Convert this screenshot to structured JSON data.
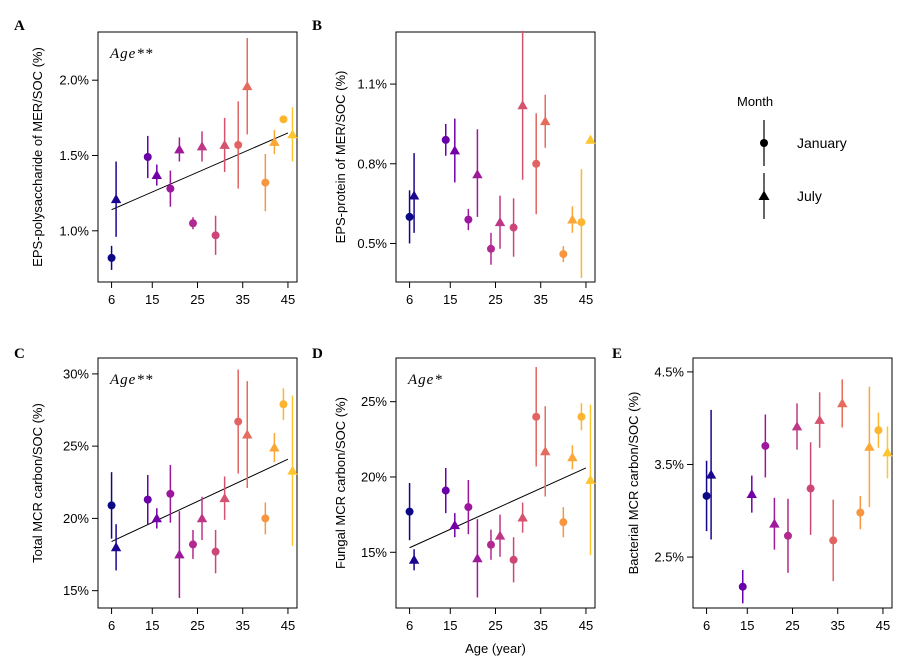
{
  "chart_data": [
    {
      "panel": "A",
      "type": "scatter",
      "ylabel": "EPS-polysaccharide of MER/SOC (%)",
      "xlabel": "",
      "annotation": "Age**",
      "xticks": [
        6,
        15,
        25,
        35,
        45
      ],
      "xtick_labels": [
        "6",
        "15",
        "25",
        "35",
        "45"
      ],
      "xlim": [
        3,
        47
      ],
      "yticks": [
        1.0,
        1.5,
        2.0
      ],
      "ytick_labels": [
        "1.0%",
        "1.5%",
        "2.0%"
      ],
      "ylim": [
        0.66,
        2.32
      ],
      "trend": [
        [
          6,
          1.14
        ],
        [
          45,
          1.65
        ]
      ],
      "points": [
        {
          "x": 6,
          "y": 0.82,
          "lo": 0.74,
          "hi": 0.9,
          "month": "January",
          "color": "#0d0887"
        },
        {
          "x": 7,
          "y": 1.21,
          "lo": 0.96,
          "hi": 1.46,
          "month": "July",
          "color": "#1c068f"
        },
        {
          "x": 14,
          "y": 1.49,
          "lo": 1.35,
          "hi": 1.63,
          "month": "January",
          "color": "#6a00a8"
        },
        {
          "x": 16,
          "y": 1.37,
          "lo": 1.3,
          "hi": 1.44,
          "month": "July",
          "color": "#7401a8"
        },
        {
          "x": 19,
          "y": 1.28,
          "lo": 1.16,
          "hi": 1.4,
          "month": "January",
          "color": "#9c179e"
        },
        {
          "x": 21,
          "y": 1.54,
          "lo": 1.46,
          "hi": 1.62,
          "month": "July",
          "color": "#9e1a9b"
        },
        {
          "x": 24,
          "y": 1.05,
          "lo": 1.01,
          "hi": 1.09,
          "month": "January",
          "color": "#b12a90"
        },
        {
          "x": 26,
          "y": 1.56,
          "lo": 1.46,
          "hi": 1.66,
          "month": "July",
          "color": "#bd3786"
        },
        {
          "x": 29,
          "y": 0.97,
          "lo": 0.84,
          "hi": 1.1,
          "month": "January",
          "color": "#cc4778"
        },
        {
          "x": 31,
          "y": 1.57,
          "lo": 1.39,
          "hi": 1.75,
          "month": "July",
          "color": "#d5536f"
        },
        {
          "x": 34,
          "y": 1.57,
          "lo": 1.28,
          "hi": 1.86,
          "month": "January",
          "color": "#e16462"
        },
        {
          "x": 36,
          "y": 1.96,
          "lo": 1.64,
          "hi": 2.28,
          "month": "July",
          "color": "#e56b5d"
        },
        {
          "x": 40,
          "y": 1.32,
          "lo": 1.13,
          "hi": 1.51,
          "month": "January",
          "color": "#f89540"
        },
        {
          "x": 42,
          "y": 1.59,
          "lo": 1.51,
          "hi": 1.67,
          "month": "July",
          "color": "#fca636"
        },
        {
          "x": 44,
          "y": 1.74,
          "lo": 1.72,
          "hi": 1.76,
          "month": "January",
          "color": "#fdb42f"
        },
        {
          "x": 46,
          "y": 1.64,
          "lo": 1.46,
          "hi": 1.82,
          "month": "July",
          "color": "#fcc62f"
        }
      ]
    },
    {
      "panel": "B",
      "type": "scatter",
      "ylabel": "EPS-protein of MER/SOC (%)",
      "xlabel": "",
      "annotation": "",
      "xticks": [
        6,
        15,
        25,
        35,
        45
      ],
      "xtick_labels": [
        "6",
        "15",
        "25",
        "35",
        "45"
      ],
      "xlim": [
        3,
        47
      ],
      "yticks": [
        0.5,
        0.8,
        1.1
      ],
      "ytick_labels": [
        "0.5%",
        "0.8%",
        "1.1%"
      ],
      "ylim": [
        0.355,
        1.296
      ],
      "trend": null,
      "points": [
        {
          "x": 6,
          "y": 0.6,
          "lo": 0.5,
          "hi": 0.7,
          "month": "January",
          "color": "#0d0887"
        },
        {
          "x": 7,
          "y": 0.68,
          "lo": 0.54,
          "hi": 0.84,
          "month": "July",
          "color": "#1c068f"
        },
        {
          "x": 14,
          "y": 0.89,
          "lo": 0.83,
          "hi": 0.95,
          "month": "January",
          "color": "#6a00a8"
        },
        {
          "x": 16,
          "y": 0.85,
          "lo": 0.73,
          "hi": 0.97,
          "month": "July",
          "color": "#7401a8"
        },
        {
          "x": 19,
          "y": 0.59,
          "lo": 0.55,
          "hi": 0.63,
          "month": "January",
          "color": "#9c179e"
        },
        {
          "x": 21,
          "y": 0.76,
          "lo": 0.6,
          "hi": 0.93,
          "month": "July",
          "color": "#9e1a9b"
        },
        {
          "x": 24,
          "y": 0.48,
          "lo": 0.42,
          "hi": 0.54,
          "month": "January",
          "color": "#b12a90"
        },
        {
          "x": 26,
          "y": 0.58,
          "lo": 0.48,
          "hi": 0.68,
          "month": "July",
          "color": "#bd3786"
        },
        {
          "x": 29,
          "y": 0.56,
          "lo": 0.45,
          "hi": 0.67,
          "month": "January",
          "color": "#cc4778"
        },
        {
          "x": 31,
          "y": 1.02,
          "lo": 0.74,
          "hi": 1.3,
          "month": "July",
          "color": "#d5536f"
        },
        {
          "x": 34,
          "y": 0.8,
          "lo": 0.61,
          "hi": 0.99,
          "month": "January",
          "color": "#e16462"
        },
        {
          "x": 36,
          "y": 0.96,
          "lo": 0.86,
          "hi": 1.06,
          "month": "July",
          "color": "#e56b5d"
        },
        {
          "x": 40,
          "y": 0.46,
          "lo": 0.43,
          "hi": 0.49,
          "month": "January",
          "color": "#f89540"
        },
        {
          "x": 42,
          "y": 0.59,
          "lo": 0.54,
          "hi": 0.64,
          "month": "July",
          "color": "#fca636"
        },
        {
          "x": 44,
          "y": 0.58,
          "lo": 0.37,
          "hi": 0.78,
          "month": "January",
          "color": "#fdb42f"
        },
        {
          "x": 46,
          "y": 0.89,
          "lo": 0.89,
          "hi": 0.89,
          "month": "July",
          "color": "#fcc62f"
        }
      ]
    },
    {
      "panel": "C",
      "type": "scatter",
      "ylabel": "Total MCR carbon/SOC (%)",
      "xlabel": "",
      "annotation": "Age**",
      "xticks": [
        6,
        15,
        25,
        35,
        45
      ],
      "xtick_labels": [
        "6",
        "15",
        "25",
        "35",
        "45"
      ],
      "xlim": [
        3,
        47
      ],
      "yticks": [
        15,
        20,
        25,
        30
      ],
      "ytick_labels": [
        "15%",
        "20%",
        "25%",
        "30%"
      ],
      "ylim": [
        13.8,
        31.1
      ],
      "trend": [
        [
          6,
          18.4
        ],
        [
          45,
          24.1
        ]
      ],
      "points": [
        {
          "x": 6,
          "y": 20.9,
          "lo": 18.6,
          "hi": 23.2,
          "month": "January",
          "color": "#0d0887"
        },
        {
          "x": 7,
          "y": 18.0,
          "lo": 16.4,
          "hi": 19.6,
          "month": "July",
          "color": "#1c068f"
        },
        {
          "x": 14,
          "y": 21.3,
          "lo": 19.6,
          "hi": 23.0,
          "month": "January",
          "color": "#6a00a8"
        },
        {
          "x": 16,
          "y": 20.0,
          "lo": 19.3,
          "hi": 20.7,
          "month": "July",
          "color": "#7401a8"
        },
        {
          "x": 19,
          "y": 21.7,
          "lo": 19.7,
          "hi": 23.7,
          "month": "January",
          "color": "#9c179e"
        },
        {
          "x": 21,
          "y": 17.5,
          "lo": 14.5,
          "hi": 20.5,
          "month": "July",
          "color": "#9e1a9b"
        },
        {
          "x": 24,
          "y": 18.2,
          "lo": 17.2,
          "hi": 19.2,
          "month": "January",
          "color": "#b12a90"
        },
        {
          "x": 26,
          "y": 20.0,
          "lo": 18.5,
          "hi": 21.5,
          "month": "July",
          "color": "#bd3786"
        },
        {
          "x": 29,
          "y": 17.7,
          "lo": 16.2,
          "hi": 19.2,
          "month": "January",
          "color": "#cc4778"
        },
        {
          "x": 31,
          "y": 21.4,
          "lo": 19.9,
          "hi": 22.9,
          "month": "July",
          "color": "#d5536f"
        },
        {
          "x": 34,
          "y": 26.7,
          "lo": 23.1,
          "hi": 30.3,
          "month": "January",
          "color": "#e16462"
        },
        {
          "x": 36,
          "y": 25.8,
          "lo": 22.1,
          "hi": 29.5,
          "month": "July",
          "color": "#e56b5d"
        },
        {
          "x": 40,
          "y": 20.0,
          "lo": 18.9,
          "hi": 21.1,
          "month": "January",
          "color": "#f89540"
        },
        {
          "x": 42,
          "y": 24.9,
          "lo": 23.9,
          "hi": 25.9,
          "month": "July",
          "color": "#fca636"
        },
        {
          "x": 44,
          "y": 27.9,
          "lo": 26.8,
          "hi": 29.0,
          "month": "January",
          "color": "#fdb42f"
        },
        {
          "x": 46,
          "y": 23.3,
          "lo": 18.1,
          "hi": 28.5,
          "month": "July",
          "color": "#fcc62f"
        }
      ]
    },
    {
      "panel": "D",
      "type": "scatter",
      "ylabel": "Fungal MCR carbon/SOC (%)",
      "xlabel": "Age (year)",
      "annotation": "Age*",
      "xticks": [
        6,
        15,
        25,
        35,
        45
      ],
      "xtick_labels": [
        "6",
        "15",
        "25",
        "35",
        "45"
      ],
      "xlim": [
        3,
        47
      ],
      "yticks": [
        15,
        20,
        25
      ],
      "ytick_labels": [
        "15%",
        "20%",
        "25%"
      ],
      "ylim": [
        11.3,
        27.9
      ],
      "trend": [
        [
          6,
          15.3
        ],
        [
          45,
          20.6
        ]
      ],
      "points": [
        {
          "x": 6,
          "y": 17.7,
          "lo": 15.8,
          "hi": 19.6,
          "month": "January",
          "color": "#0d0887"
        },
        {
          "x": 7,
          "y": 14.5,
          "lo": 13.8,
          "hi": 15.2,
          "month": "July",
          "color": "#1c068f"
        },
        {
          "x": 14,
          "y": 19.1,
          "lo": 17.6,
          "hi": 20.6,
          "month": "January",
          "color": "#6a00a8"
        },
        {
          "x": 16,
          "y": 16.8,
          "lo": 16.0,
          "hi": 17.6,
          "month": "July",
          "color": "#7401a8"
        },
        {
          "x": 19,
          "y": 18.0,
          "lo": 16.2,
          "hi": 19.8,
          "month": "January",
          "color": "#9c179e"
        },
        {
          "x": 21,
          "y": 14.6,
          "lo": 12.0,
          "hi": 17.2,
          "month": "July",
          "color": "#9e1a9b"
        },
        {
          "x": 24,
          "y": 15.5,
          "lo": 14.5,
          "hi": 16.5,
          "month": "January",
          "color": "#b12a90"
        },
        {
          "x": 26,
          "y": 16.1,
          "lo": 14.7,
          "hi": 17.5,
          "month": "July",
          "color": "#bd3786"
        },
        {
          "x": 29,
          "y": 14.5,
          "lo": 13.0,
          "hi": 16.0,
          "month": "January",
          "color": "#cc4778"
        },
        {
          "x": 31,
          "y": 17.3,
          "lo": 16.3,
          "hi": 18.3,
          "month": "July",
          "color": "#d5536f"
        },
        {
          "x": 34,
          "y": 24.0,
          "lo": 20.7,
          "hi": 27.3,
          "month": "January",
          "color": "#e16462"
        },
        {
          "x": 36,
          "y": 21.7,
          "lo": 18.7,
          "hi": 24.7,
          "month": "July",
          "color": "#e56b5d"
        },
        {
          "x": 40,
          "y": 17.0,
          "lo": 16.0,
          "hi": 18.0,
          "month": "January",
          "color": "#f89540"
        },
        {
          "x": 42,
          "y": 21.3,
          "lo": 20.5,
          "hi": 22.1,
          "month": "July",
          "color": "#fca636"
        },
        {
          "x": 44,
          "y": 24.0,
          "lo": 23.1,
          "hi": 24.9,
          "month": "January",
          "color": "#fdb42f"
        },
        {
          "x": 46,
          "y": 19.8,
          "lo": 14.8,
          "hi": 24.8,
          "month": "July",
          "color": "#fcc62f"
        }
      ]
    },
    {
      "panel": "E",
      "type": "scatter",
      "ylabel": "Bacterial MCR carbon/SOC (%)",
      "xlabel": "",
      "annotation": "",
      "xticks": [
        6,
        15,
        25,
        35,
        45
      ],
      "xtick_labels": [
        "6",
        "15",
        "25",
        "35",
        "45"
      ],
      "xlim": [
        3,
        47
      ],
      "yticks": [
        2.5,
        3.5,
        4.5
      ],
      "ytick_labels": [
        "2.5%",
        "3.5%",
        "4.5%"
      ],
      "ylim": [
        1.95,
        4.65
      ],
      "trend": null,
      "points": [
        {
          "x": 6,
          "y": 3.16,
          "lo": 2.78,
          "hi": 3.54,
          "month": "January",
          "color": "#0d0887"
        },
        {
          "x": 7,
          "y": 3.39,
          "lo": 2.69,
          "hi": 4.09,
          "month": "July",
          "color": "#1c068f"
        },
        {
          "x": 14,
          "y": 2.18,
          "lo": 2.0,
          "hi": 2.36,
          "month": "January",
          "color": "#6a00a8"
        },
        {
          "x": 16,
          "y": 3.18,
          "lo": 2.98,
          "hi": 3.38,
          "month": "July",
          "color": "#7401a8"
        },
        {
          "x": 19,
          "y": 3.7,
          "lo": 3.36,
          "hi": 4.04,
          "month": "January",
          "color": "#9c179e"
        },
        {
          "x": 21,
          "y": 2.86,
          "lo": 2.58,
          "hi": 3.14,
          "month": "July",
          "color": "#9e1a9b"
        },
        {
          "x": 24,
          "y": 2.73,
          "lo": 2.33,
          "hi": 3.13,
          "month": "January",
          "color": "#b12a90"
        },
        {
          "x": 26,
          "y": 3.91,
          "lo": 3.66,
          "hi": 4.16,
          "month": "July",
          "color": "#bd3786"
        },
        {
          "x": 29,
          "y": 3.24,
          "lo": 2.74,
          "hi": 3.74,
          "month": "January",
          "color": "#cc4778"
        },
        {
          "x": 31,
          "y": 3.98,
          "lo": 3.68,
          "hi": 4.28,
          "month": "July",
          "color": "#d5536f"
        },
        {
          "x": 34,
          "y": 2.68,
          "lo": 2.24,
          "hi": 3.12,
          "month": "January",
          "color": "#e16462"
        },
        {
          "x": 36,
          "y": 4.16,
          "lo": 3.9,
          "hi": 4.42,
          "month": "July",
          "color": "#e56b5d"
        },
        {
          "x": 40,
          "y": 2.98,
          "lo": 2.8,
          "hi": 3.16,
          "month": "January",
          "color": "#f89540"
        },
        {
          "x": 42,
          "y": 3.69,
          "lo": 3.04,
          "hi": 4.34,
          "month": "July",
          "color": "#fca636"
        },
        {
          "x": 44,
          "y": 3.87,
          "lo": 3.68,
          "hi": 4.06,
          "month": "January",
          "color": "#fdb42f"
        },
        {
          "x": 46,
          "y": 3.63,
          "lo": 3.35,
          "hi": 3.91,
          "month": "July",
          "color": "#fcc62f"
        }
      ]
    }
  ],
  "legend": {
    "title": "Month",
    "entries": [
      {
        "label": "January",
        "shape": "circle"
      },
      {
        "label": "July",
        "shape": "triangle"
      }
    ]
  }
}
